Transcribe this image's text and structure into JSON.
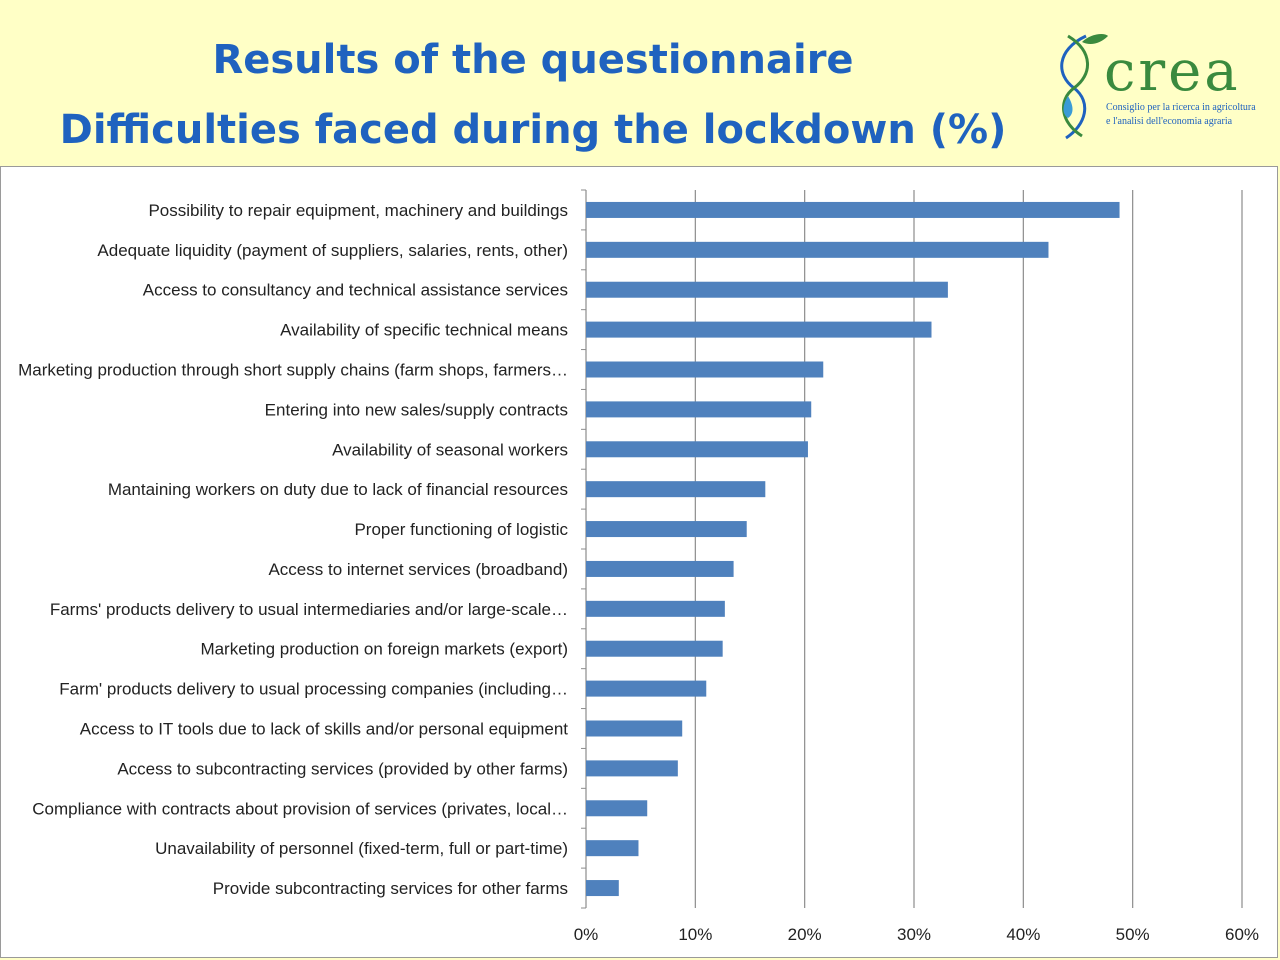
{
  "header": {
    "title_line1": "Results of the questionnaire",
    "title_line2": "Difficulties faced during the lockdown (%)"
  },
  "logo": {
    "word": "crea",
    "line1": "Consiglio per la ricerca in agricoltura",
    "line2": "e l'analisi dell'economia agraria",
    "colors": {
      "green": "#3a8a3e",
      "blue": "#1f62bf"
    }
  },
  "chart_data": {
    "type": "bar",
    "orientation": "horizontal",
    "categories": [
      "Possibility to repair equipment, machinery and buildings",
      "Adequate liquidity (payment of suppliers, salaries, rents, other)",
      "Access to consultancy and technical assistance services",
      "Availability of specific technical means",
      "Marketing production through short supply chains (farm shops, farmers…",
      "Entering into new sales/supply contracts",
      "Availability of seasonal workers",
      "Mantaining workers on duty due to lack of financial resources",
      "Proper functioning of logistic",
      "Access to internet services (broadband)",
      "Farms' products delivery to usual intermediaries and/or large-scale…",
      "Marketing production on foreign markets (export)",
      "Farm' products delivery to  usual processing companies (including…",
      "Access to IT tools due to lack of skills and/or personal equipment",
      "Access to subcontracting services (provided by other farms)",
      "Compliance with contracts about provision of services (privates, local…",
      "Unavailability of personnel (fixed-term, full or part-time)",
      "Provide subcontracting services for other farms"
    ],
    "values": [
      48.8,
      42.3,
      33.1,
      31.6,
      21.7,
      20.6,
      20.3,
      16.4,
      14.7,
      13.5,
      12.7,
      12.5,
      11.0,
      8.8,
      8.4,
      5.6,
      4.8,
      3.0
    ],
    "xlim": [
      0,
      60
    ],
    "xticks": [
      0,
      10,
      20,
      30,
      40,
      50,
      60
    ],
    "xtick_labels": [
      "0%",
      "10%",
      "20%",
      "30%",
      "40%",
      "50%",
      "60%"
    ],
    "grid": "vertical",
    "bar_color": "#4f81bd"
  }
}
